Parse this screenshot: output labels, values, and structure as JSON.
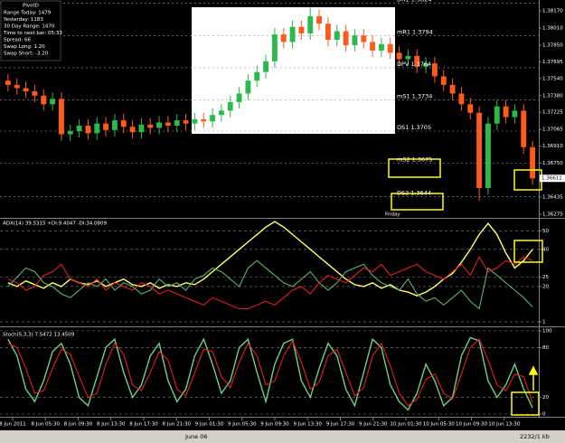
{
  "chart_data": [
    {
      "type": "candlestick",
      "open": [
        1.3752,
        1.3748,
        1.3745,
        1.3742,
        1.3738,
        1.373,
        1.3735,
        1.3702,
        1.3705,
        1.371,
        1.3703,
        1.3712,
        1.3706,
        1.3715,
        1.3709,
        1.3704,
        1.3711,
        1.3708,
        1.3713,
        1.371,
        1.3715,
        1.3712,
        1.3716,
        1.3714,
        1.372,
        1.3724,
        1.3732,
        1.374,
        1.3752,
        1.376,
        1.377,
        1.3795,
        1.3788,
        1.3802,
        1.3796,
        1.3812,
        1.3805,
        1.379,
        1.3798,
        1.3785,
        1.3794,
        1.3788,
        1.378,
        1.3786,
        1.3778,
        1.3772,
        1.3775,
        1.3765,
        1.3768,
        1.3756,
        1.3748,
        1.374,
        1.373,
        1.3722,
        1.3652,
        1.3712,
        1.3728,
        1.3718,
        1.3724,
        1.369
      ],
      "high": [
        1.3758,
        1.3754,
        1.3751,
        1.3748,
        1.3744,
        1.3741,
        1.3741,
        1.3711,
        1.3716,
        1.3716,
        1.3718,
        1.3718,
        1.3721,
        1.3721,
        1.3715,
        1.3717,
        1.3717,
        1.3719,
        1.3719,
        1.3721,
        1.3721,
        1.3722,
        1.3722,
        1.3726,
        1.373,
        1.3738,
        1.3746,
        1.3758,
        1.3766,
        1.3776,
        1.3801,
        1.3801,
        1.3808,
        1.3808,
        1.382,
        1.3818,
        1.3811,
        1.3804,
        1.3804,
        1.38,
        1.38,
        1.3794,
        1.3792,
        1.3792,
        1.3784,
        1.3781,
        1.3781,
        1.3774,
        1.3774,
        1.3762,
        1.3754,
        1.3746,
        1.3736,
        1.3728,
        1.3718,
        1.3734,
        1.3734,
        1.373,
        1.373,
        1.3696
      ],
      "low": [
        1.3742,
        1.3739,
        1.3736,
        1.3732,
        1.3724,
        1.3724,
        1.3696,
        1.3696,
        1.3699,
        1.3697,
        1.3697,
        1.37,
        1.37,
        1.3703,
        1.3698,
        1.3698,
        1.3702,
        1.3702,
        1.3704,
        1.3704,
        1.3706,
        1.3706,
        1.3708,
        1.3708,
        1.3714,
        1.3718,
        1.3726,
        1.3734,
        1.3746,
        1.3754,
        1.3764,
        1.3782,
        1.3782,
        1.379,
        1.379,
        1.3799,
        1.3784,
        1.3784,
        1.3779,
        1.3779,
        1.3782,
        1.3774,
        1.3774,
        1.3772,
        1.3766,
        1.3766,
        1.3759,
        1.3759,
        1.375,
        1.3742,
        1.3734,
        1.3724,
        1.3716,
        1.364,
        1.3646,
        1.3706,
        1.3712,
        1.3712,
        1.3684,
        1.3655
      ],
      "close": [
        1.3748,
        1.3745,
        1.3742,
        1.3738,
        1.373,
        1.3735,
        1.3702,
        1.3705,
        1.371,
        1.3703,
        1.3712,
        1.3706,
        1.3715,
        1.3709,
        1.3704,
        1.3711,
        1.3708,
        1.3713,
        1.371,
        1.3715,
        1.3712,
        1.3716,
        1.3714,
        1.372,
        1.3724,
        1.3732,
        1.374,
        1.3752,
        1.376,
        1.377,
        1.3795,
        1.3788,
        1.3802,
        1.3796,
        1.3812,
        1.3805,
        1.379,
        1.3798,
        1.3785,
        1.3794,
        1.3788,
        1.378,
        1.3786,
        1.3778,
        1.3772,
        1.3775,
        1.3765,
        1.3768,
        1.3756,
        1.3748,
        1.374,
        1.373,
        1.3722,
        1.3652,
        1.3712,
        1.3728,
        1.3718,
        1.3724,
        1.369,
        1.3661
      ],
      "up_color": "#2db84d",
      "down_color": "#ff5a1e",
      "ylim": [
        1.3625,
        1.38254
      ],
      "yticks": [
        {
          "value": 1.3817,
          "label": "1.38170"
        },
        {
          "value": 1.3801,
          "label": "1.38010"
        },
        {
          "value": 1.3785,
          "label": "1.37850"
        },
        {
          "value": 1.37695,
          "label": "1.37695"
        },
        {
          "value": 1.3754,
          "label": "1.37540"
        },
        {
          "value": 1.3738,
          "label": "1.37380"
        },
        {
          "value": 1.37225,
          "label": "1.37225"
        },
        {
          "value": 1.37065,
          "label": "1.37065"
        },
        {
          "value": 1.3691,
          "label": "1.36910"
        },
        {
          "value": 1.3675,
          "label": "1.36750"
        },
        {
          "value": 1.36595,
          "label": "1.36595"
        },
        {
          "value": 1.36435,
          "label": "1.36435"
        },
        {
          "value": 1.36275,
          "label": "1.36275"
        }
      ],
      "current_price": {
        "value": 1.3661,
        "label": "1.36611"
      },
      "pivots": [
        {
          "value": 1.3824,
          "label": "DR1 1.3824"
        },
        {
          "value": 1.3794,
          "label": "mR1 1.3794"
        },
        {
          "value": 1.3764,
          "label": "DPV 1.3764"
        },
        {
          "value": 1.3734,
          "label": "mS1 1.3734"
        },
        {
          "value": 1.3705,
          "label": "DS1 1.3705"
        },
        {
          "value": 1.3675,
          "label": "mS2 1.3675"
        },
        {
          "value": 1.3644,
          "label": "DS2 1.3644"
        }
      ],
      "session_label": "Friday",
      "info_title": "PivotD",
      "info": [
        "Range Today: 1479",
        "Yesterday: 1183",
        "30 Day Range: 1470",
        "Time to next bar: 05:33",
        "Spread: 66",
        "Swap Long: 1.20",
        "Swap Short: -3.20"
      ]
    },
    {
      "type": "line",
      "title": "ADX(14) 39.5315 +DI:9.4047 -DI:34.0809",
      "series": [
        {
          "color": "#ffff66",
          "values": [
            22,
            20,
            23,
            21,
            19,
            22,
            20,
            24,
            22,
            21,
            23,
            20,
            22,
            24,
            21,
            20,
            22,
            19,
            21,
            20,
            22,
            21,
            24,
            28,
            32,
            36,
            40,
            44,
            48,
            52,
            55,
            52,
            48,
            44,
            40,
            36,
            32,
            28,
            24,
            21,
            20,
            22,
            19,
            21,
            18,
            17,
            15,
            17,
            20,
            24,
            27,
            33,
            40,
            48,
            54,
            48,
            38,
            30,
            34,
            40
          ]
        },
        {
          "color": "#5fae72",
          "values": [
            20,
            25,
            30,
            28,
            22,
            20,
            16,
            14,
            18,
            22,
            20,
            24,
            18,
            22,
            20,
            16,
            18,
            24,
            20,
            22,
            18,
            24,
            26,
            30,
            28,
            24,
            20,
            30,
            34,
            30,
            26,
            22,
            20,
            24,
            28,
            22,
            18,
            22,
            28,
            30,
            32,
            26,
            22,
            20,
            18,
            24,
            16,
            12,
            14,
            10,
            14,
            18,
            12,
            8,
            30,
            26,
            22,
            18,
            14,
            9
          ]
        },
        {
          "color": "#e0201b",
          "values": [
            24,
            22,
            18,
            20,
            26,
            28,
            32,
            24,
            22,
            20,
            24,
            18,
            22,
            20,
            18,
            22,
            20,
            16,
            18,
            16,
            14,
            12,
            10,
            14,
            12,
            10,
            8,
            8,
            10,
            12,
            10,
            14,
            18,
            20,
            16,
            22,
            26,
            24,
            22,
            26,
            30,
            28,
            32,
            26,
            28,
            30,
            32,
            28,
            26,
            24,
            28,
            32,
            26,
            36,
            28,
            30,
            34,
            32,
            36,
            34
          ]
        }
      ],
      "ylim": [
        -1,
        56
      ],
      "yticks": [
        50,
        40,
        25,
        20,
        1
      ],
      "grid": true
    },
    {
      "type": "line",
      "title": "Stoch(5,3,3) 7.5472 13.4509",
      "series": [
        {
          "color": "#6fcf86",
          "values": [
            90,
            70,
            30,
            15,
            40,
            75,
            85,
            60,
            20,
            10,
            45,
            80,
            90,
            50,
            20,
            35,
            70,
            85,
            40,
            15,
            30,
            70,
            90,
            60,
            25,
            40,
            80,
            90,
            50,
            15,
            60,
            85,
            90,
            40,
            20,
            55,
            85,
            70,
            30,
            10,
            50,
            90,
            80,
            35,
            15,
            5,
            25,
            60,
            40,
            10,
            20,
            70,
            92,
            88,
            40,
            20,
            35,
            60,
            30,
            7.5472
          ]
        },
        {
          "color": "#e0201b",
          "values": [
            85,
            80,
            55,
            25,
            28,
            55,
            78,
            72,
            45,
            20,
            25,
            60,
            85,
            72,
            35,
            28,
            50,
            75,
            65,
            30,
            22,
            50,
            78,
            75,
            45,
            32,
            62,
            85,
            70,
            35,
            40,
            70,
            88,
            62,
            30,
            38,
            70,
            78,
            50,
            22,
            32,
            70,
            85,
            58,
            25,
            10,
            18,
            42,
            48,
            25,
            18,
            48,
            80,
            90,
            65,
            35,
            28,
            48,
            45,
            13.4509
          ]
        }
      ],
      "ylim": [
        0,
        100
      ],
      "yticks": [
        100,
        80,
        20,
        0
      ],
      "grid": true
    }
  ],
  "time_axis": [
    "8 Jun 2011",
    "8 Jun 05:30",
    "8 Jun 09:30",
    "8 Jun 13:30",
    "8 Jun 17:30",
    "8 Jun 21:30",
    "9 Jun 01:30",
    "9 Jun 05:30",
    "9 Jun 09:30",
    "9 Jun 13:30",
    "9 Jun 17:30",
    "9 Jun 21:30",
    "10 Jun 01:30",
    "10 Jun 05:30",
    "10 Jun 09:30",
    "10 Jun 13:30"
  ],
  "status_bar": [
    "June 06",
    "2232/1 kb"
  ]
}
